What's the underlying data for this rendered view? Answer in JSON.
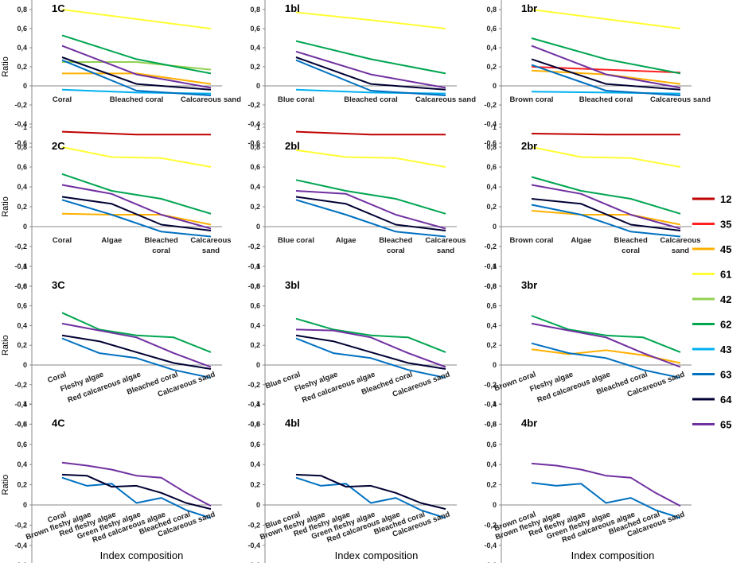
{
  "chart_data": {
    "type": "line",
    "title": "",
    "ylabel": "Ratio",
    "xlabel": "Index composition",
    "ylim": [
      -0.6,
      1
    ],
    "yticks": [
      "1",
      "0,8",
      "0,6",
      "0,4",
      "0,2",
      "0",
      "-0,2",
      "-0,4",
      "-0,6"
    ],
    "legend": {
      "position": "right",
      "entries": [
        {
          "name": "12",
          "color": "#c00000"
        },
        {
          "name": "35",
          "color": "#ff2020"
        },
        {
          "name": "45",
          "color": "#ffb000"
        },
        {
          "name": "61",
          "color": "#ffff33"
        },
        {
          "name": "42",
          "color": "#92d050"
        },
        {
          "name": "62",
          "color": "#00a550"
        },
        {
          "name": "43",
          "color": "#00b0f0"
        },
        {
          "name": "63",
          "color": "#0070c0"
        },
        {
          "name": "64",
          "color": "#000033"
        },
        {
          "name": "65",
          "color": "#7030a0"
        }
      ]
    },
    "panels": [
      {
        "title": "1C",
        "categories": [
          "Coral",
          "Bleached coral",
          "Calcareous sand"
        ],
        "series": [
          {
            "name": "12",
            "values": [
              -0.48,
              -0.51,
              -0.51
            ]
          },
          {
            "name": "45",
            "values": [
              0.13,
              0.13,
              0.02
            ]
          },
          {
            "name": "61",
            "values": [
              0.8,
              0.7,
              0.6
            ]
          },
          {
            "name": "42",
            "values": [
              0.25,
              0.25,
              0.17
            ]
          },
          {
            "name": "62",
            "values": [
              0.53,
              0.28,
              0.13
            ]
          },
          {
            "name": "43",
            "values": [
              -0.04,
              -0.07,
              -0.08
            ]
          },
          {
            "name": "63",
            "values": [
              0.27,
              -0.05,
              -0.1
            ]
          },
          {
            "name": "64",
            "values": [
              0.3,
              0.02,
              -0.04
            ]
          },
          {
            "name": "65",
            "values": [
              0.42,
              0.12,
              -0.02
            ]
          }
        ]
      },
      {
        "title": "1bl",
        "categories": [
          "Blue coral",
          "Bleached coral",
          "Calcareous sand"
        ],
        "series": [
          {
            "name": "12",
            "values": [
              -0.48,
              -0.51,
              -0.51
            ]
          },
          {
            "name": "61",
            "values": [
              0.77,
              0.69,
              0.6
            ]
          },
          {
            "name": "62",
            "values": [
              0.47,
              0.28,
              0.13
            ]
          },
          {
            "name": "43",
            "values": [
              -0.04,
              -0.07,
              -0.08
            ]
          },
          {
            "name": "63",
            "values": [
              0.27,
              -0.05,
              -0.1
            ]
          },
          {
            "name": "64",
            "values": [
              0.3,
              0.02,
              -0.04
            ]
          },
          {
            "name": "65",
            "values": [
              0.36,
              0.12,
              -0.02
            ]
          }
        ]
      },
      {
        "title": "1br",
        "categories": [
          "Brown coral",
          "Bleached coral",
          "Calcareous sand"
        ],
        "series": [
          {
            "name": "12",
            "values": [
              -0.5,
              -0.51,
              -0.51
            ]
          },
          {
            "name": "35",
            "values": [
              0.2,
              0.17,
              0.14
            ]
          },
          {
            "name": "45",
            "values": [
              0.16,
              0.12,
              0.02
            ]
          },
          {
            "name": "61",
            "values": [
              0.8,
              0.7,
              0.6
            ]
          },
          {
            "name": "62",
            "values": [
              0.5,
              0.28,
              0.13
            ]
          },
          {
            "name": "43",
            "values": [
              -0.06,
              -0.07,
              -0.08
            ]
          },
          {
            "name": "63",
            "values": [
              0.22,
              -0.05,
              -0.1
            ]
          },
          {
            "name": "64",
            "values": [
              0.28,
              0.02,
              -0.04
            ]
          },
          {
            "name": "65",
            "values": [
              0.42,
              0.12,
              -0.02
            ]
          }
        ]
      },
      {
        "title": "2C",
        "categories": [
          "Coral",
          "Algae",
          "Bleached coral",
          "Calcareous sand"
        ],
        "series": [
          {
            "name": "45",
            "values": [
              0.13,
              0.12,
              0.12,
              0.02
            ]
          },
          {
            "name": "61",
            "values": [
              0.8,
              0.7,
              0.69,
              0.6
            ]
          },
          {
            "name": "62",
            "values": [
              0.53,
              0.36,
              0.28,
              0.13
            ]
          },
          {
            "name": "63",
            "values": [
              0.27,
              0.12,
              -0.05,
              -0.1
            ]
          },
          {
            "name": "64",
            "values": [
              0.3,
              0.23,
              0.02,
              -0.04
            ]
          },
          {
            "name": "65",
            "values": [
              0.42,
              0.33,
              0.12,
              -0.02
            ]
          }
        ]
      },
      {
        "title": "2bl",
        "categories": [
          "Blue coral",
          "Algae",
          "Bleached coral",
          "Calcareous sand"
        ],
        "series": [
          {
            "name": "61",
            "values": [
              0.77,
              0.7,
              0.69,
              0.6
            ]
          },
          {
            "name": "62",
            "values": [
              0.47,
              0.36,
              0.28,
              0.13
            ]
          },
          {
            "name": "63",
            "values": [
              0.27,
              0.12,
              -0.05,
              -0.1
            ]
          },
          {
            "name": "64",
            "values": [
              0.3,
              0.23,
              0.02,
              -0.04
            ]
          },
          {
            "name": "65",
            "values": [
              0.36,
              0.33,
              0.12,
              -0.02
            ]
          }
        ]
      },
      {
        "title": "2br",
        "categories": [
          "Brown coral",
          "Algae",
          "Bleached coral",
          "Calcareous sand"
        ],
        "series": [
          {
            "name": "45",
            "values": [
              0.16,
              0.12,
              0.12,
              0.02
            ]
          },
          {
            "name": "61",
            "values": [
              0.8,
              0.7,
              0.69,
              0.6
            ]
          },
          {
            "name": "62",
            "values": [
              0.5,
              0.36,
              0.28,
              0.13
            ]
          },
          {
            "name": "63",
            "values": [
              0.22,
              0.12,
              -0.05,
              -0.1
            ]
          },
          {
            "name": "64",
            "values": [
              0.28,
              0.23,
              0.02,
              -0.04
            ]
          },
          {
            "name": "65",
            "values": [
              0.42,
              0.33,
              0.12,
              -0.02
            ]
          }
        ]
      },
      {
        "title": "3C",
        "categories": [
          "Coral",
          "Fleshy algae",
          "Red calcareous algae",
          "Bleached coral",
          "Calcareous sand"
        ],
        "series": [
          {
            "name": "62",
            "values": [
              0.53,
              0.36,
              0.3,
              0.28,
              0.13
            ]
          },
          {
            "name": "63",
            "values": [
              0.27,
              0.12,
              0.07,
              -0.05,
              -0.13
            ]
          },
          {
            "name": "64",
            "values": [
              0.3,
              0.24,
              0.13,
              0.02,
              -0.04
            ]
          },
          {
            "name": "65",
            "values": [
              0.42,
              0.35,
              0.28,
              0.12,
              -0.02
            ]
          }
        ]
      },
      {
        "title": "3bl",
        "categories": [
          "Blue coral",
          "Fleshy algae",
          "Red calcareous algae",
          "Bleached coral",
          "Calcareous sand"
        ],
        "series": [
          {
            "name": "62",
            "values": [
              0.47,
              0.36,
              0.3,
              0.28,
              0.13
            ]
          },
          {
            "name": "63",
            "values": [
              0.27,
              0.12,
              0.07,
              -0.05,
              -0.13
            ]
          },
          {
            "name": "64",
            "values": [
              0.3,
              0.24,
              0.13,
              0.02,
              -0.04
            ]
          },
          {
            "name": "65",
            "values": [
              0.36,
              0.35,
              0.28,
              0.12,
              -0.02
            ]
          }
        ]
      },
      {
        "title": "3br",
        "categories": [
          "Brown coral",
          "Fleshy algae",
          "Red calcareous algae",
          "Bleached coral",
          "Calcareous sand"
        ],
        "series": [
          {
            "name": "45",
            "values": [
              0.16,
              0.11,
              0.15,
              0.1,
              0.02
            ]
          },
          {
            "name": "62",
            "values": [
              0.5,
              0.36,
              0.3,
              0.28,
              0.13
            ]
          },
          {
            "name": "63",
            "values": [
              0.22,
              0.12,
              0.07,
              -0.05,
              -0.13
            ]
          },
          {
            "name": "65",
            "values": [
              0.42,
              0.35,
              0.28,
              0.12,
              -0.02
            ]
          }
        ]
      },
      {
        "title": "4C",
        "categories": [
          "Coral",
          "Brown fleshy algae",
          "Red fleshy algae",
          "Green fleshy algae",
          "Red calcareous algae",
          "Bleached coral",
          "Calcareous sand"
        ],
        "series": [
          {
            "name": "63",
            "values": [
              0.27,
              0.19,
              0.21,
              0.02,
              0.07,
              -0.05,
              -0.13
            ]
          },
          {
            "name": "64",
            "values": [
              0.3,
              0.29,
              0.18,
              0.19,
              0.12,
              0.02,
              -0.04
            ]
          },
          {
            "name": "65",
            "values": [
              0.42,
              0.39,
              0.35,
              0.29,
              0.27,
              0.12,
              -0.01
            ]
          }
        ]
      },
      {
        "title": "4bl",
        "categories": [
          "Blue coral",
          "Brown fleshy algae",
          "Red fleshy algae",
          "Green fleshy algae",
          "Red calcareous algae",
          "Bleached coral",
          "Calcareous sand"
        ],
        "series": [
          {
            "name": "63",
            "values": [
              0.27,
              0.19,
              0.21,
              0.02,
              0.07,
              -0.05,
              -0.13
            ]
          },
          {
            "name": "64",
            "values": [
              0.3,
              0.29,
              0.18,
              0.19,
              0.12,
              0.02,
              -0.04
            ]
          }
        ]
      },
      {
        "title": "4br",
        "categories": [
          "Brown coral",
          "Brown fleshy algae",
          "Red fleshy algae",
          "Green fleshy algae",
          "Red calcareous algae",
          "Bleached coral",
          "Calcareous sand"
        ],
        "series": [
          {
            "name": "63",
            "values": [
              0.22,
              0.19,
              0.21,
              0.02,
              0.07,
              -0.05,
              -0.13
            ]
          },
          {
            "name": "65",
            "values": [
              0.41,
              0.39,
              0.35,
              0.29,
              0.27,
              0.12,
              -0.01
            ]
          }
        ]
      }
    ]
  }
}
